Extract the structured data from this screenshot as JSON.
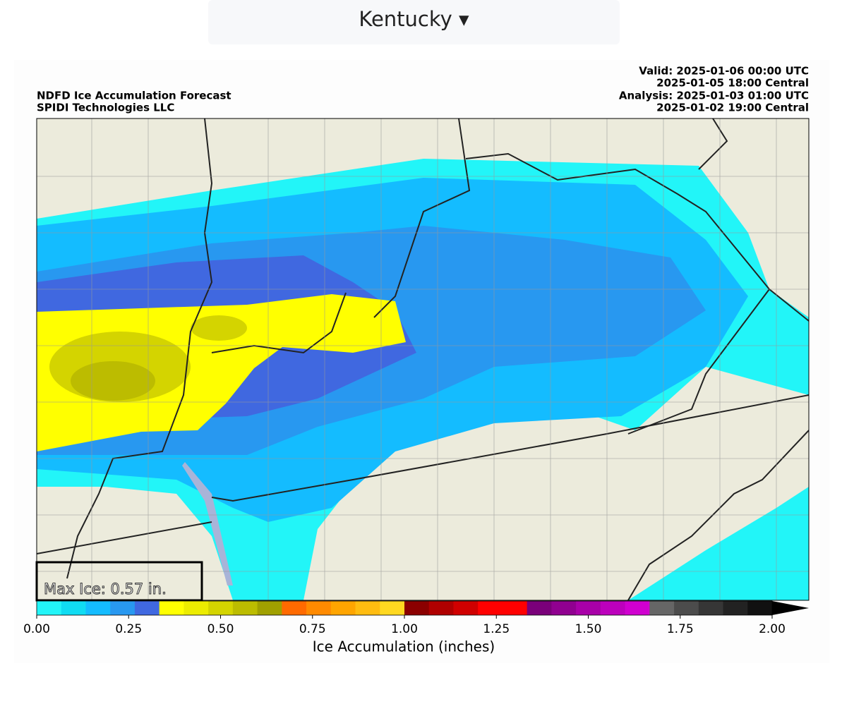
{
  "header": {
    "dropdown": "Kentucky"
  },
  "figure": {
    "title": [
      "NDFD Ice Accumulation Forecast",
      "SPIDI Technologies LLC"
    ],
    "times": [
      "Valid: 2025-01-06 00:00 UTC",
      "2025-01-05 18:00 Central",
      "Analysis: 2025-01-03 01:00 UTC",
      "2025-01-02 19:00 Central"
    ],
    "max_ice": "Max Ice: 0.57 in.",
    "colorbar": {
      "label": "Ice Accumulation (inches)",
      "xlim": [
        0,
        2
      ],
      "xticks": [
        {
          "value": 0,
          "label": "0.00"
        },
        {
          "value": 0.25,
          "label": "0.25"
        },
        {
          "value": 0.5,
          "label": "0.50"
        },
        {
          "value": 0.75,
          "label": "0.75"
        },
        {
          "value": 1,
          "label": "1.00"
        },
        {
          "value": 1.25,
          "label": "1.25"
        },
        {
          "value": 1.5,
          "label": "1.50"
        },
        {
          "value": 1.75,
          "label": "1.75"
        },
        {
          "value": 2,
          "label": "2.00"
        }
      ],
      "colors": [
        "#22f5f8",
        "#10dcf2",
        "#14bcff",
        "#2898f0",
        "#4068e0",
        "#ffff00",
        "#ecec00",
        "#d4d400",
        "#bcbc00",
        "#a0a000",
        "#ff6a00",
        "#ff8a00",
        "#ffa500",
        "#ffbc10",
        "#ffd820",
        "#8b0000",
        "#b00000",
        "#d00000",
        "#ff0000",
        "#ff0000",
        "#7a007a",
        "#900090",
        "#a800a8",
        "#bc00bc",
        "#d000d0",
        "#666666",
        "#4c4c4c",
        "#363636",
        "#222222",
        "#111111"
      ],
      "extend_color": "#000000"
    }
  }
}
